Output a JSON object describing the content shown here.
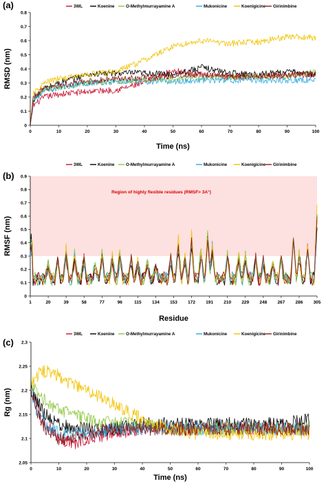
{
  "chart_data": [
    {
      "panel": "(a)",
      "type": "line",
      "xlabel": "Time (ns)",
      "ylabel": "RMSD (nm)",
      "xlim": [
        0,
        100
      ],
      "ylim": [
        0,
        0.8
      ],
      "xticks": [
        0,
        10,
        20,
        30,
        40,
        50,
        60,
        70,
        80,
        90,
        100
      ],
      "yticks": [
        0,
        0.1,
        0.2,
        0.3,
        0.4,
        0.5,
        0.6,
        0.7,
        0.8
      ],
      "grid": false,
      "legend_position": "top",
      "series": [
        {
          "name": "3WL",
          "color": "#c8102e",
          "x": [
            0,
            1,
            5,
            10,
            20,
            30,
            40,
            50,
            60,
            70,
            80,
            90,
            100
          ],
          "y": [
            0.0,
            0.14,
            0.2,
            0.22,
            0.24,
            0.25,
            0.3,
            0.39,
            0.36,
            0.34,
            0.35,
            0.35,
            0.36
          ]
        },
        {
          "name": "Koenine",
          "color": "#000000",
          "x": [
            0,
            1,
            5,
            10,
            20,
            30,
            40,
            50,
            60,
            70,
            80,
            90,
            100
          ],
          "y": [
            0.0,
            0.18,
            0.26,
            0.3,
            0.36,
            0.37,
            0.37,
            0.36,
            0.41,
            0.37,
            0.36,
            0.38,
            0.36
          ]
        },
        {
          "name": "O-Methylmurrayamine A",
          "color": "#8cc63f",
          "x": [
            0,
            1,
            5,
            10,
            20,
            30,
            40,
            50,
            60,
            70,
            80,
            90,
            100
          ],
          "y": [
            0.0,
            0.19,
            0.25,
            0.27,
            0.3,
            0.31,
            0.32,
            0.33,
            0.34,
            0.34,
            0.34,
            0.35,
            0.38
          ]
        },
        {
          "name": "Mukonicine",
          "color": "#29a8e0",
          "x": [
            0,
            1,
            5,
            10,
            20,
            30,
            40,
            50,
            60,
            70,
            80,
            90,
            100
          ],
          "y": [
            0.0,
            0.18,
            0.24,
            0.27,
            0.3,
            0.31,
            0.31,
            0.31,
            0.32,
            0.32,
            0.32,
            0.32,
            0.32
          ]
        },
        {
          "name": "Koenigicine",
          "color": "#f2c200",
          "x": [
            0,
            1,
            5,
            10,
            20,
            30,
            40,
            50,
            60,
            70,
            80,
            90,
            100
          ],
          "y": [
            0.0,
            0.22,
            0.3,
            0.33,
            0.36,
            0.38,
            0.46,
            0.56,
            0.6,
            0.58,
            0.59,
            0.63,
            0.62
          ]
        },
        {
          "name": "Girinimbine",
          "color": "#8b1a1a",
          "x": [
            0,
            1,
            5,
            10,
            20,
            30,
            40,
            50,
            60,
            70,
            80,
            90,
            100
          ],
          "y": [
            0.0,
            0.2,
            0.26,
            0.28,
            0.31,
            0.33,
            0.34,
            0.35,
            0.36,
            0.35,
            0.35,
            0.36,
            0.36
          ]
        }
      ]
    },
    {
      "panel": "(b)",
      "type": "line",
      "xlabel": "Residue",
      "ylabel": "RMSF (nm)",
      "xlim": [
        1,
        305
      ],
      "ylim": [
        0,
        0.9
      ],
      "xticks": [
        1,
        20,
        39,
        58,
        77,
        96,
        115,
        134,
        153,
        172,
        191,
        210,
        229,
        248,
        267,
        286,
        305
      ],
      "yticks": [
        0,
        0.1,
        0.2,
        0.3,
        0.4,
        0.5,
        0.6,
        0.7,
        0.8,
        0.9
      ],
      "grid": false,
      "legend_position": "top",
      "annotation": "Region of highly flexible residues (RMSF> 3A°)",
      "highlight_band": [
        0.3,
        0.9
      ],
      "highlight_color": "#fde0e0",
      "peaks": [
        [
          1,
          0.45
        ],
        [
          20,
          0.22
        ],
        [
          30,
          0.27
        ],
        [
          39,
          0.32
        ],
        [
          48,
          0.3
        ],
        [
          58,
          0.27
        ],
        [
          70,
          0.22
        ],
        [
          77,
          0.3
        ],
        [
          88,
          0.28
        ],
        [
          96,
          0.31
        ],
        [
          108,
          0.28
        ],
        [
          115,
          0.24
        ],
        [
          125,
          0.25
        ],
        [
          134,
          0.22
        ],
        [
          150,
          0.28
        ],
        [
          158,
          0.38
        ],
        [
          165,
          0.27
        ],
        [
          172,
          0.42
        ],
        [
          182,
          0.32
        ],
        [
          189,
          0.44
        ],
        [
          194,
          0.36
        ],
        [
          210,
          0.3
        ],
        [
          222,
          0.28
        ],
        [
          229,
          0.29
        ],
        [
          240,
          0.28
        ],
        [
          248,
          0.26
        ],
        [
          258,
          0.24
        ],
        [
          267,
          0.29
        ],
        [
          280,
          0.43
        ],
        [
          286,
          0.3
        ],
        [
          295,
          0.36
        ],
        [
          305,
          0.58
        ]
      ],
      "series": [
        {
          "name": "3WL",
          "color": "#c8102e",
          "scale": 1.0
        },
        {
          "name": "Koenine",
          "color": "#000000",
          "scale": 0.95
        },
        {
          "name": "O-Methylmurrayamine A",
          "color": "#8cc63f",
          "scale": 1.08
        },
        {
          "name": "Mukonicine",
          "color": "#29a8e0",
          "scale": 1.02
        },
        {
          "name": "Koenigicine",
          "color": "#f2c200",
          "scale": 1.15
        },
        {
          "name": "Girinimbine",
          "color": "#8b1a1a",
          "scale": 0.98
        }
      ]
    },
    {
      "panel": "(c)",
      "type": "line",
      "xlabel": "Time (ns)",
      "ylabel": "Rg (nm)",
      "xlim": [
        0,
        100
      ],
      "ylim": [
        2.05,
        2.3
      ],
      "xticks": [
        0,
        10,
        20,
        30,
        40,
        50,
        60,
        70,
        80,
        90,
        100
      ],
      "yticks": [
        2.05,
        2.1,
        2.15,
        2.2,
        2.25,
        2.3
      ],
      "grid": false,
      "legend_position": "top",
      "series": [
        {
          "name": "3WL",
          "color": "#c8102e",
          "x": [
            0,
            2,
            5,
            10,
            15,
            20,
            30,
            40,
            50,
            60,
            70,
            80,
            90,
            100
          ],
          "y": [
            2.2,
            2.17,
            2.13,
            2.1,
            2.09,
            2.1,
            2.11,
            2.12,
            2.12,
            2.12,
            2.12,
            2.12,
            2.12,
            2.12
          ]
        },
        {
          "name": "Koenine",
          "color": "#000000",
          "x": [
            0,
            2,
            5,
            10,
            15,
            20,
            30,
            40,
            50,
            60,
            70,
            80,
            90,
            100
          ],
          "y": [
            2.2,
            2.18,
            2.15,
            2.13,
            2.12,
            2.12,
            2.12,
            2.13,
            2.13,
            2.13,
            2.13,
            2.13,
            2.13,
            2.14
          ]
        },
        {
          "name": "O-Methylmurrayamine A",
          "color": "#8cc63f",
          "x": [
            0,
            2,
            5,
            10,
            15,
            20,
            30,
            40,
            50,
            60,
            70,
            80,
            90,
            100
          ],
          "y": [
            2.21,
            2.2,
            2.18,
            2.16,
            2.15,
            2.14,
            2.13,
            2.13,
            2.12,
            2.12,
            2.12,
            2.12,
            2.12,
            2.12
          ]
        },
        {
          "name": "Mukonicine",
          "color": "#29a8e0",
          "x": [
            0,
            2,
            5,
            10,
            15,
            20,
            30,
            40,
            50,
            60,
            70,
            80,
            90,
            100
          ],
          "y": [
            2.2,
            2.16,
            2.13,
            2.11,
            2.11,
            2.11,
            2.12,
            2.12,
            2.12,
            2.12,
            2.12,
            2.12,
            2.12,
            2.12
          ]
        },
        {
          "name": "Koenigicine",
          "color": "#f2c200",
          "x": [
            0,
            2,
            5,
            10,
            15,
            20,
            30,
            40,
            50,
            60,
            70,
            80,
            90,
            100
          ],
          "y": [
            2.22,
            2.23,
            2.24,
            2.23,
            2.21,
            2.2,
            2.17,
            2.14,
            2.12,
            2.11,
            2.11,
            2.11,
            2.11,
            2.11
          ]
        },
        {
          "name": "Girinimbine",
          "color": "#8b1a1a",
          "x": [
            0,
            2,
            5,
            10,
            15,
            20,
            30,
            40,
            50,
            60,
            70,
            80,
            90,
            100
          ],
          "y": [
            2.2,
            2.16,
            2.12,
            2.1,
            2.1,
            2.11,
            2.12,
            2.12,
            2.12,
            2.12,
            2.12,
            2.12,
            2.12,
            2.12
          ]
        }
      ]
    }
  ]
}
